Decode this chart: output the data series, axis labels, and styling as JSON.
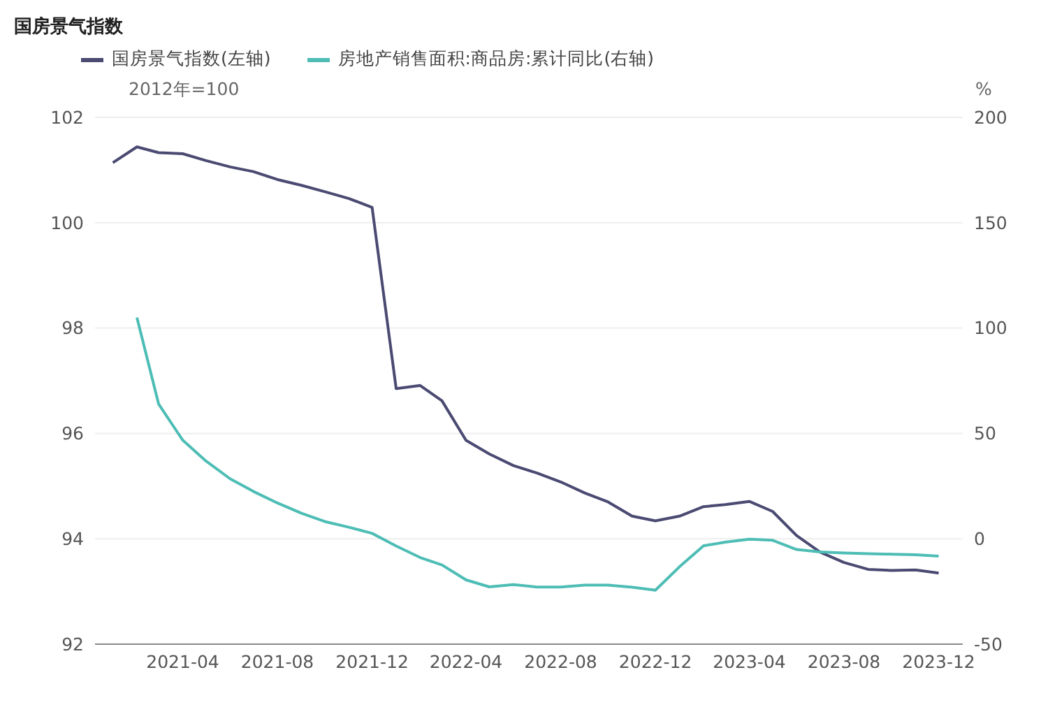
{
  "chart_data": {
    "type": "line",
    "title": "国房景气指数",
    "ylabel": "2012年=100",
    "y2label": "%",
    "x": [
      "2021-01",
      "2021-02",
      "2021-03",
      "2021-04",
      "2021-05",
      "2021-06",
      "2021-07",
      "2021-08",
      "2021-09",
      "2021-10",
      "2021-11",
      "2021-12",
      "2022-01",
      "2022-02",
      "2022-03",
      "2022-04",
      "2022-05",
      "2022-06",
      "2022-07",
      "2022-08",
      "2022-09",
      "2022-10",
      "2022-11",
      "2022-12",
      "2023-01",
      "2023-02",
      "2023-03",
      "2023-04",
      "2023-05",
      "2023-06",
      "2023-07",
      "2023-08",
      "2023-09",
      "2023-10",
      "2023-11",
      "2023-12"
    ],
    "series": [
      {
        "name": "国房景气指数(左轴)",
        "color": "#4a4a72",
        "values": [
          101.14,
          101.44,
          101.33,
          101.31,
          101.18,
          101.06,
          100.97,
          100.82,
          100.71,
          100.59,
          100.46,
          100.29,
          96.85,
          96.91,
          96.62,
          95.87,
          95.61,
          95.39,
          95.25,
          95.08,
          94.87,
          94.7,
          94.43,
          94.34,
          94.43,
          94.61,
          94.65,
          94.71,
          94.52,
          94.06,
          93.75,
          93.55,
          93.42,
          93.4,
          93.41,
          93.35
        ]
      },
      {
        "name": "房地产销售面积:商品房:累计同比(右轴)",
        "color": "#4dbdb5",
        "axis": "y2",
        "values": [
          null,
          105.0,
          63.9,
          46.8,
          36.9,
          28.5,
          22.5,
          17.0,
          12.1,
          8.2,
          5.5,
          2.6,
          -3.4,
          -8.9,
          -12.4,
          -19.5,
          -22.8,
          -21.7,
          -22.9,
          -22.9,
          -22.0,
          -22.0,
          -23.0,
          -24.4,
          -13.3,
          -3.3,
          -1.6,
          -0.2,
          -0.7,
          -5.1,
          -6.2,
          -6.7,
          -7.1,
          -7.3,
          -7.6,
          -8.2
        ]
      }
    ],
    "xlim": [
      "2020-12-09",
      "2024-01-01"
    ],
    "xticks": [
      "2021-04",
      "2021-08",
      "2021-12",
      "2022-04",
      "2022-08",
      "2022-12",
      "2023-04",
      "2023-08",
      "2023-12"
    ],
    "ylim": [
      92,
      102
    ],
    "yticks": [
      92,
      94,
      96,
      98,
      100,
      102
    ],
    "y2lim": [
      -50,
      200
    ],
    "y2ticks": [
      -50,
      0,
      50,
      100,
      150,
      200
    ],
    "grid": "y",
    "legend": "top left",
    "marker": "none",
    "line_style": "solid"
  }
}
